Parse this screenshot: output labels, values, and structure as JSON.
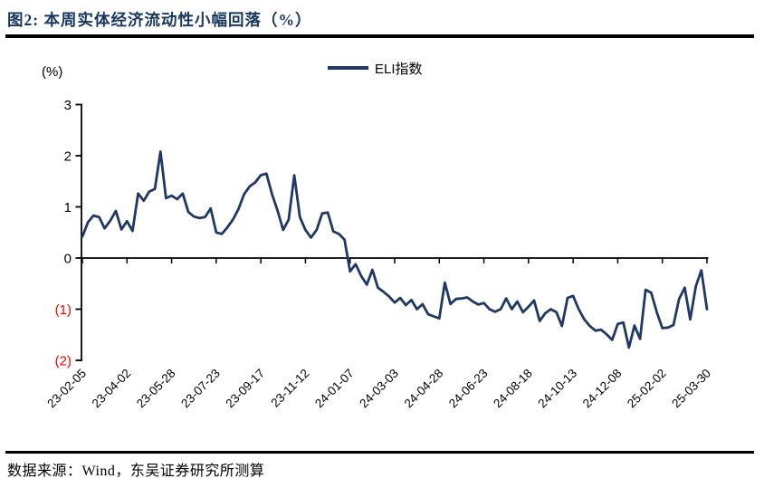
{
  "title": "图2:  本周实体经济流动性小幅回落（%）",
  "source": "数据来源：Wind，东吴证券研究所测算",
  "chart_data": {
    "type": "line",
    "title": "本周实体经济流动性小幅回落（%）",
    "legend": "ELI指数",
    "legend_position": "top-center",
    "unit_label": "(%)",
    "line_color": "#1f3864",
    "axis_color": "#000000",
    "negative_tick_color": "#ff0000",
    "grid": false,
    "ylim": [
      -2,
      3
    ],
    "y_ticks": [
      3,
      2,
      1,
      0,
      -1,
      -2
    ],
    "y_tick_labels": [
      "3",
      "2",
      "1",
      "0",
      "(1)",
      "(2)"
    ],
    "frequency": "weekly",
    "x_label_every": 8,
    "x_tick_labels": [
      "23-02-05",
      "23-04-02",
      "23-05-28",
      "23-07-23",
      "23-09-17",
      "23-11-12",
      "24-01-07",
      "24-03-03",
      "24-04-28",
      "24-06-23",
      "24-08-18",
      "24-10-13",
      "24-12-08",
      "25-02-02",
      "25-03-30"
    ],
    "series": [
      {
        "name": "ELI指数",
        "values": [
          0.42,
          0.7,
          0.83,
          0.8,
          0.58,
          0.73,
          0.92,
          0.56,
          0.72,
          0.53,
          1.26,
          1.12,
          1.3,
          1.35,
          2.08,
          1.17,
          1.22,
          1.15,
          1.26,
          0.9,
          0.81,
          0.78,
          0.8,
          0.97,
          0.5,
          0.47,
          0.6,
          0.75,
          0.96,
          1.25,
          1.4,
          1.48,
          1.62,
          1.65,
          1.25,
          0.93,
          0.55,
          0.75,
          1.62,
          0.8,
          0.55,
          0.4,
          0.55,
          0.87,
          0.89,
          0.52,
          0.47,
          0.36,
          -0.26,
          -0.12,
          -0.35,
          -0.52,
          -0.23,
          -0.58,
          -0.66,
          -0.75,
          -0.87,
          -0.78,
          -0.92,
          -0.82,
          -1.0,
          -0.9,
          -1.1,
          -1.14,
          -1.18,
          -0.48,
          -0.9,
          -0.8,
          -0.79,
          -0.77,
          -0.85,
          -0.91,
          -0.88,
          -1.0,
          -1.05,
          -1.0,
          -0.79,
          -1.0,
          -0.85,
          -1.06,
          -0.95,
          -0.83,
          -1.23,
          -1.08,
          -1.0,
          -1.06,
          -1.33,
          -0.78,
          -0.74,
          -1.0,
          -1.2,
          -1.33,
          -1.42,
          -1.4,
          -1.49,
          -1.6,
          -1.29,
          -1.26,
          -1.75,
          -1.32,
          -1.58,
          -0.62,
          -0.68,
          -1.06,
          -1.37,
          -1.36,
          -1.31,
          -0.8,
          -0.58,
          -1.2,
          -0.55,
          -0.24,
          -1.0
        ]
      }
    ]
  }
}
